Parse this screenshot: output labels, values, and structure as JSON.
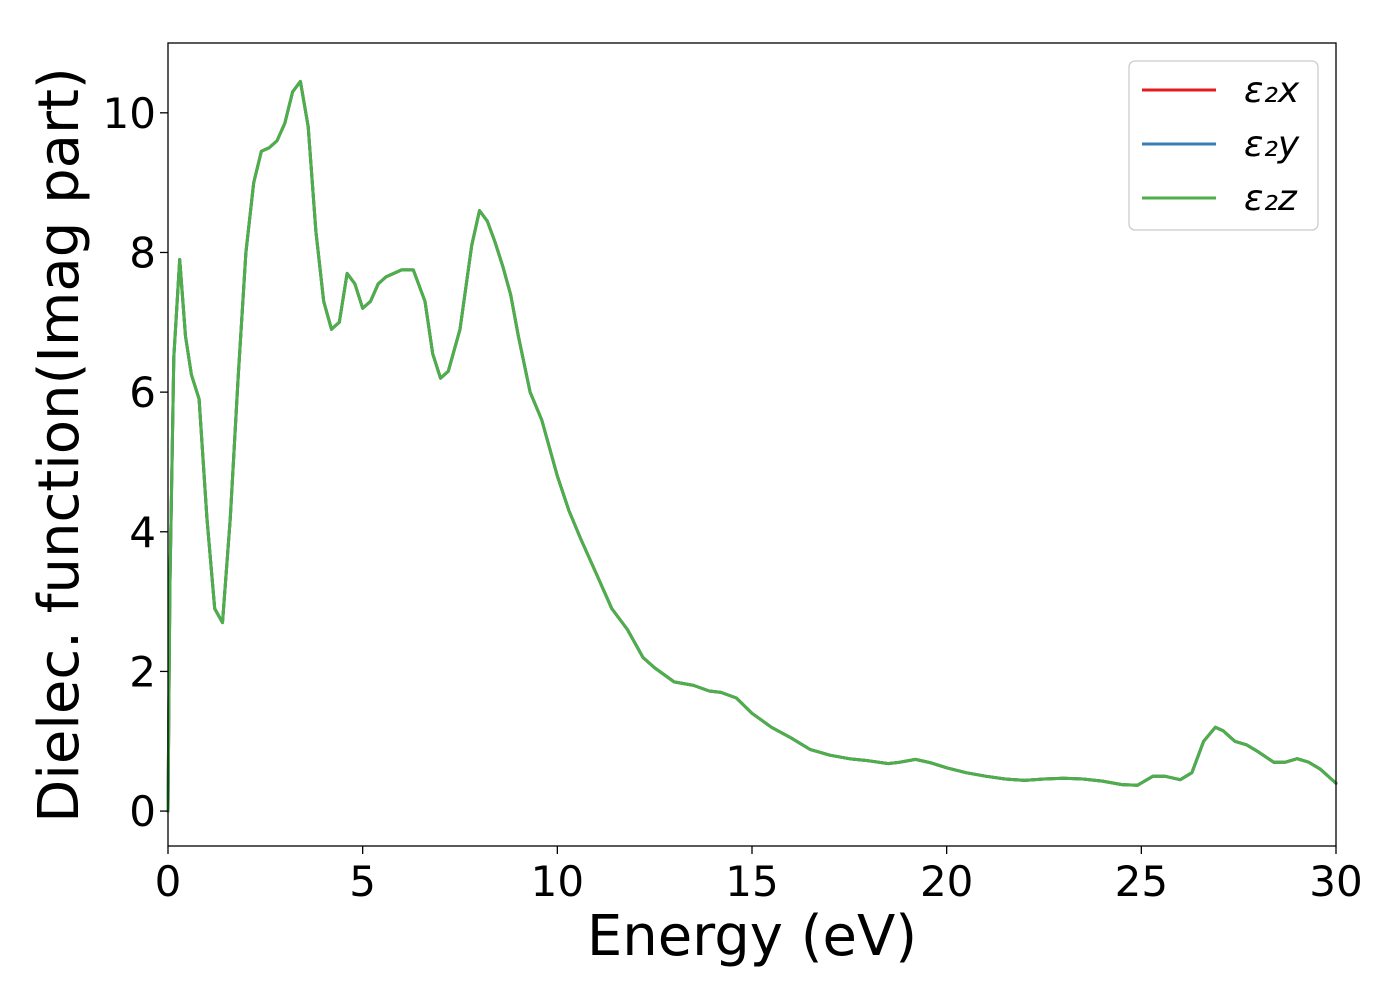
{
  "chart_data": {
    "type": "line",
    "title": "",
    "xlabel": "Energy (eV)",
    "ylabel": "Dielec. function(Imag part)",
    "xlim": [
      0,
      30
    ],
    "ylim": [
      -0.5,
      11
    ],
    "x_ticks": [
      "0",
      "5",
      "10",
      "15",
      "20",
      "25",
      "30"
    ],
    "y_ticks": [
      "0",
      "2",
      "4",
      "6",
      "8",
      "10"
    ],
    "grid": false,
    "legend_position": "top-right",
    "legend": [
      {
        "label": "ε₂x",
        "color": "#e41a1c"
      },
      {
        "label": "ε₂y",
        "color": "#377eb8"
      },
      {
        "label": "ε₂z",
        "color": "#4daf4a"
      }
    ],
    "x": [
      0,
      0.05,
      0.15,
      0.3,
      0.45,
      0.6,
      0.8,
      1.0,
      1.2,
      1.4,
      1.6,
      1.8,
      2.0,
      2.2,
      2.4,
      2.6,
      2.8,
      3.0,
      3.2,
      3.4,
      3.6,
      3.8,
      4.0,
      4.2,
      4.4,
      4.6,
      4.8,
      5.0,
      5.2,
      5.4,
      5.6,
      5.8,
      6.0,
      6.3,
      6.6,
      6.8,
      7.0,
      7.2,
      7.5,
      7.8,
      8.0,
      8.2,
      8.4,
      8.6,
      8.8,
      9.0,
      9.3,
      9.6,
      10.0,
      10.3,
      10.6,
      11.0,
      11.4,
      11.8,
      12.2,
      12.5,
      13.0,
      13.5,
      13.9,
      14.2,
      14.6,
      15.0,
      15.5,
      16.0,
      16.5,
      17.0,
      17.5,
      18.0,
      18.5,
      18.8,
      19.2,
      19.6,
      20.0,
      20.5,
      21.0,
      21.5,
      22.0,
      22.5,
      23.0,
      23.5,
      24.0,
      24.5,
      24.9,
      25.3,
      25.6,
      26.0,
      26.3,
      26.6,
      26.9,
      27.1,
      27.4,
      27.7,
      28.0,
      28.4,
      28.7,
      29.0,
      29.3,
      29.6,
      30.0
    ],
    "series": [
      {
        "name": "ε₂x",
        "values": [
          0,
          3.2,
          6.5,
          7.9,
          6.8,
          6.25,
          5.9,
          4.2,
          2.9,
          2.7,
          4.2,
          6.2,
          8.0,
          9.0,
          9.45,
          9.5,
          9.6,
          9.85,
          10.3,
          10.45,
          9.8,
          8.3,
          7.3,
          6.9,
          7.0,
          7.7,
          7.55,
          7.2,
          7.3,
          7.55,
          7.65,
          7.7,
          7.75,
          7.75,
          7.3,
          6.55,
          6.2,
          6.3,
          6.9,
          8.1,
          8.6,
          8.45,
          8.15,
          7.8,
          7.4,
          6.8,
          6.0,
          5.6,
          4.8,
          4.3,
          3.9,
          3.4,
          2.9,
          2.6,
          2.2,
          2.05,
          1.85,
          1.8,
          1.72,
          1.7,
          1.62,
          1.4,
          1.2,
          1.05,
          0.88,
          0.8,
          0.75,
          0.72,
          0.68,
          0.7,
          0.74,
          0.69,
          0.62,
          0.55,
          0.5,
          0.46,
          0.44,
          0.46,
          0.47,
          0.46,
          0.43,
          0.38,
          0.37,
          0.5,
          0.5,
          0.45,
          0.55,
          1.0,
          1.2,
          1.15,
          1.0,
          0.95,
          0.85,
          0.7,
          0.7,
          0.75,
          0.7,
          0.6,
          0.4
        ]
      },
      {
        "name": "ε₂y",
        "values": [
          0,
          3.2,
          6.5,
          7.9,
          6.8,
          6.25,
          5.9,
          4.2,
          2.9,
          2.7,
          4.2,
          6.2,
          8.0,
          9.0,
          9.45,
          9.5,
          9.6,
          9.85,
          10.3,
          10.45,
          9.8,
          8.3,
          7.3,
          6.9,
          7.0,
          7.7,
          7.55,
          7.2,
          7.3,
          7.55,
          7.65,
          7.7,
          7.75,
          7.75,
          7.3,
          6.55,
          6.2,
          6.3,
          6.9,
          8.1,
          8.6,
          8.45,
          8.15,
          7.8,
          7.4,
          6.8,
          6.0,
          5.6,
          4.8,
          4.3,
          3.9,
          3.4,
          2.9,
          2.6,
          2.2,
          2.05,
          1.85,
          1.8,
          1.72,
          1.7,
          1.62,
          1.4,
          1.2,
          1.05,
          0.88,
          0.8,
          0.75,
          0.72,
          0.68,
          0.7,
          0.74,
          0.69,
          0.62,
          0.55,
          0.5,
          0.46,
          0.44,
          0.46,
          0.47,
          0.46,
          0.43,
          0.38,
          0.37,
          0.5,
          0.5,
          0.45,
          0.55,
          1.0,
          1.2,
          1.15,
          1.0,
          0.95,
          0.85,
          0.7,
          0.7,
          0.75,
          0.7,
          0.6,
          0.4
        ]
      },
      {
        "name": "ε₂z",
        "values": [
          0,
          3.2,
          6.5,
          7.9,
          6.8,
          6.25,
          5.9,
          4.2,
          2.9,
          2.7,
          4.2,
          6.2,
          8.0,
          9.0,
          9.45,
          9.5,
          9.6,
          9.85,
          10.3,
          10.45,
          9.8,
          8.3,
          7.3,
          6.9,
          7.0,
          7.7,
          7.55,
          7.2,
          7.3,
          7.55,
          7.65,
          7.7,
          7.75,
          7.75,
          7.3,
          6.55,
          6.2,
          6.3,
          6.9,
          8.1,
          8.6,
          8.45,
          8.15,
          7.8,
          7.4,
          6.8,
          6.0,
          5.6,
          4.8,
          4.3,
          3.9,
          3.4,
          2.9,
          2.6,
          2.2,
          2.05,
          1.85,
          1.8,
          1.72,
          1.7,
          1.62,
          1.4,
          1.2,
          1.05,
          0.88,
          0.8,
          0.75,
          0.72,
          0.68,
          0.7,
          0.74,
          0.69,
          0.62,
          0.55,
          0.5,
          0.46,
          0.44,
          0.46,
          0.47,
          0.46,
          0.43,
          0.38,
          0.37,
          0.5,
          0.5,
          0.45,
          0.55,
          1.0,
          1.2,
          1.15,
          1.0,
          0.95,
          0.85,
          0.7,
          0.7,
          0.75,
          0.7,
          0.6,
          0.4
        ]
      }
    ]
  }
}
